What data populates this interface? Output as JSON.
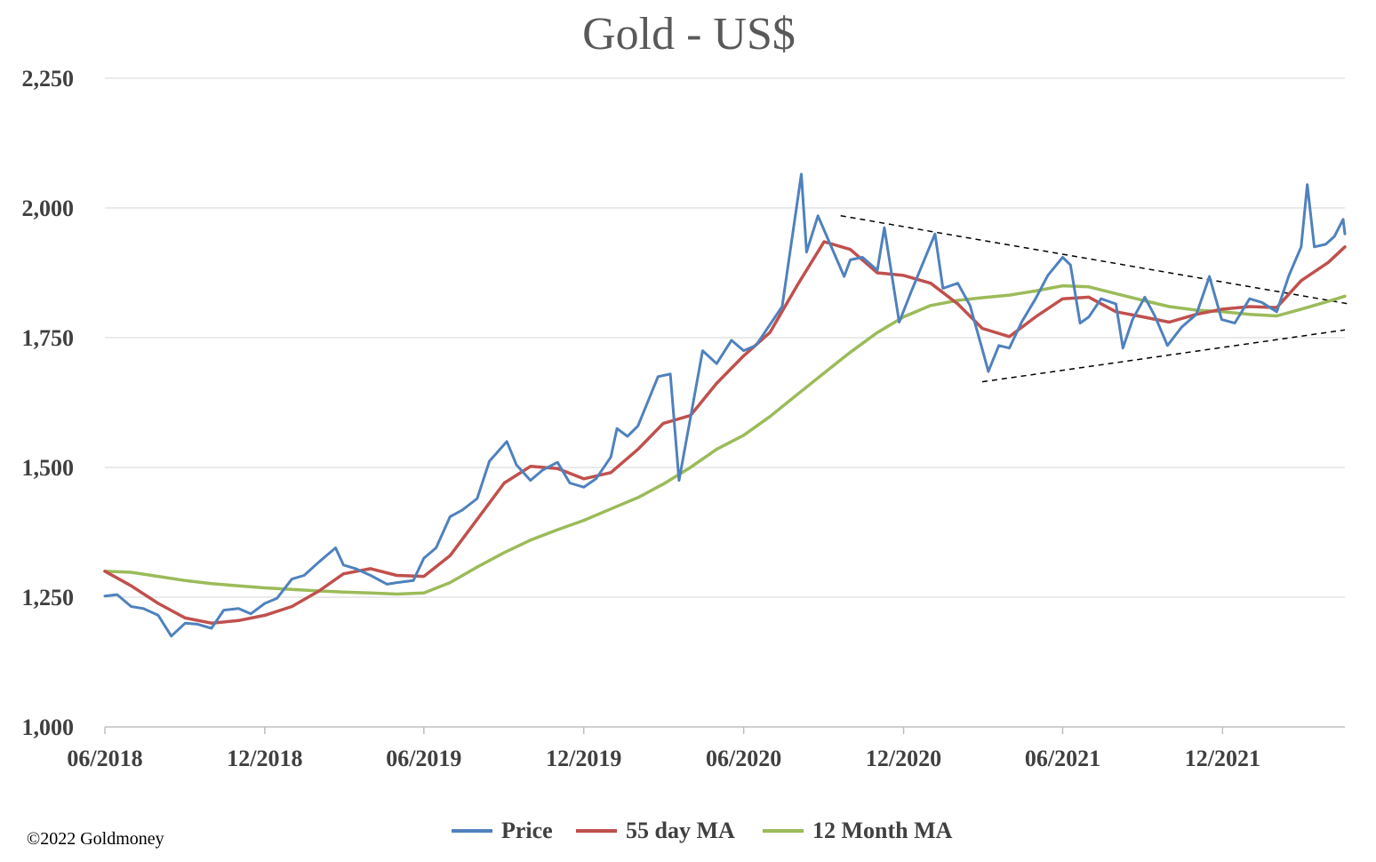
{
  "chart_data": {
    "type": "line",
    "title": "Gold - US$",
    "xlabel": "",
    "ylabel": "",
    "ylim": [
      1000,
      2250
    ],
    "yticks": [
      1000,
      1250,
      1500,
      1750,
      2000,
      2250
    ],
    "ytick_labels": [
      "1,000",
      "1,250",
      "1,500",
      "1,750",
      "2,000",
      "2,250"
    ],
    "xlim": [
      "2018-06-01",
      "2022-04-20"
    ],
    "xticks": [
      "2018-06-01",
      "2018-12-01",
      "2019-06-01",
      "2019-12-01",
      "2020-06-01",
      "2020-12-01",
      "2021-06-01",
      "2021-12-01"
    ],
    "xtick_labels": [
      "06/2018",
      "12/2018",
      "06/2019",
      "12/2019",
      "06/2020",
      "12/2020",
      "06/2021",
      "12/2021"
    ],
    "grid": true,
    "legend_position": "bottom",
    "copyright": "©2022 Goldmoney",
    "series": [
      {
        "name": "Price",
        "color": "#4f81bd",
        "points": [
          [
            "2018-06-01",
            1252
          ],
          [
            "2018-06-15",
            1255
          ],
          [
            "2018-07-01",
            1232
          ],
          [
            "2018-07-15",
            1228
          ],
          [
            "2018-08-01",
            1215
          ],
          [
            "2018-08-16",
            1175
          ],
          [
            "2018-09-01",
            1200
          ],
          [
            "2018-09-15",
            1198
          ],
          [
            "2018-10-01",
            1190
          ],
          [
            "2018-10-15",
            1225
          ],
          [
            "2018-11-01",
            1228
          ],
          [
            "2018-11-15",
            1218
          ],
          [
            "2018-12-01",
            1238
          ],
          [
            "2018-12-15",
            1248
          ],
          [
            "2019-01-01",
            1285
          ],
          [
            "2019-01-15",
            1292
          ],
          [
            "2019-02-01",
            1318
          ],
          [
            "2019-02-20",
            1345
          ],
          [
            "2019-03-01",
            1312
          ],
          [
            "2019-03-15",
            1305
          ],
          [
            "2019-04-01",
            1292
          ],
          [
            "2019-04-20",
            1275
          ],
          [
            "2019-05-01",
            1278
          ],
          [
            "2019-05-20",
            1282
          ],
          [
            "2019-06-01",
            1325
          ],
          [
            "2019-06-15",
            1345
          ],
          [
            "2019-07-01",
            1405
          ],
          [
            "2019-07-15",
            1418
          ],
          [
            "2019-08-01",
            1440
          ],
          [
            "2019-08-15",
            1512
          ],
          [
            "2019-09-04",
            1550
          ],
          [
            "2019-09-15",
            1505
          ],
          [
            "2019-10-01",
            1475
          ],
          [
            "2019-10-15",
            1495
          ],
          [
            "2019-11-01",
            1510
          ],
          [
            "2019-11-15",
            1470
          ],
          [
            "2019-12-01",
            1462
          ],
          [
            "2019-12-15",
            1478
          ],
          [
            "2020-01-01",
            1520
          ],
          [
            "2020-01-08",
            1575
          ],
          [
            "2020-01-20",
            1560
          ],
          [
            "2020-02-01",
            1580
          ],
          [
            "2020-02-24",
            1675
          ],
          [
            "2020-03-09",
            1680
          ],
          [
            "2020-03-19",
            1475
          ],
          [
            "2020-04-01",
            1595
          ],
          [
            "2020-04-15",
            1725
          ],
          [
            "2020-05-01",
            1700
          ],
          [
            "2020-05-18",
            1745
          ],
          [
            "2020-06-01",
            1725
          ],
          [
            "2020-06-15",
            1735
          ],
          [
            "2020-07-01",
            1775
          ],
          [
            "2020-07-15",
            1810
          ],
          [
            "2020-08-06",
            2065
          ],
          [
            "2020-08-12",
            1915
          ],
          [
            "2020-08-25",
            1985
          ],
          [
            "2020-09-08",
            1930
          ],
          [
            "2020-09-24",
            1868
          ],
          [
            "2020-10-01",
            1900
          ],
          [
            "2020-10-15",
            1905
          ],
          [
            "2020-11-01",
            1880
          ],
          [
            "2020-11-09",
            1962
          ],
          [
            "2020-11-26",
            1780
          ],
          [
            "2020-12-10",
            1840
          ],
          [
            "2021-01-06",
            1950
          ],
          [
            "2021-01-15",
            1845
          ],
          [
            "2021-02-01",
            1855
          ],
          [
            "2021-02-15",
            1812
          ],
          [
            "2021-03-01",
            1728
          ],
          [
            "2021-03-08",
            1685
          ],
          [
            "2021-03-20",
            1735
          ],
          [
            "2021-04-01",
            1730
          ],
          [
            "2021-04-15",
            1780
          ],
          [
            "2021-05-01",
            1825
          ],
          [
            "2021-05-15",
            1870
          ],
          [
            "2021-06-01",
            1905
          ],
          [
            "2021-06-10",
            1890
          ],
          [
            "2021-06-21",
            1778
          ],
          [
            "2021-07-01",
            1790
          ],
          [
            "2021-07-15",
            1825
          ],
          [
            "2021-08-01",
            1815
          ],
          [
            "2021-08-09",
            1730
          ],
          [
            "2021-08-20",
            1785
          ],
          [
            "2021-09-03",
            1828
          ],
          [
            "2021-09-15",
            1790
          ],
          [
            "2021-09-29",
            1735
          ],
          [
            "2021-10-15",
            1770
          ],
          [
            "2021-11-01",
            1795
          ],
          [
            "2021-11-16",
            1868
          ],
          [
            "2021-11-30",
            1785
          ],
          [
            "2021-12-15",
            1778
          ],
          [
            "2022-01-01",
            1825
          ],
          [
            "2022-01-15",
            1818
          ],
          [
            "2022-02-01",
            1800
          ],
          [
            "2022-02-15",
            1870
          ],
          [
            "2022-03-01",
            1925
          ],
          [
            "2022-03-08",
            2045
          ],
          [
            "2022-03-16",
            1925
          ],
          [
            "2022-03-29",
            1930
          ],
          [
            "2022-04-08",
            1945
          ],
          [
            "2022-04-18",
            1978
          ],
          [
            "2022-04-20",
            1950
          ]
        ]
      },
      {
        "name": "55 day MA",
        "color": "#c0504d",
        "points": [
          [
            "2018-06-01",
            1300
          ],
          [
            "2018-07-01",
            1272
          ],
          [
            "2018-08-01",
            1238
          ],
          [
            "2018-09-01",
            1210
          ],
          [
            "2018-10-01",
            1200
          ],
          [
            "2018-11-01",
            1205
          ],
          [
            "2018-12-01",
            1215
          ],
          [
            "2019-01-01",
            1232
          ],
          [
            "2019-02-01",
            1262
          ],
          [
            "2019-03-01",
            1295
          ],
          [
            "2019-04-01",
            1305
          ],
          [
            "2019-05-01",
            1292
          ],
          [
            "2019-06-01",
            1290
          ],
          [
            "2019-07-01",
            1330
          ],
          [
            "2019-08-01",
            1400
          ],
          [
            "2019-09-01",
            1470
          ],
          [
            "2019-10-01",
            1502
          ],
          [
            "2019-11-01",
            1498
          ],
          [
            "2019-12-01",
            1478
          ],
          [
            "2020-01-01",
            1490
          ],
          [
            "2020-02-01",
            1535
          ],
          [
            "2020-03-01",
            1585
          ],
          [
            "2020-04-01",
            1600
          ],
          [
            "2020-05-01",
            1662
          ],
          [
            "2020-06-01",
            1715
          ],
          [
            "2020-07-01",
            1760
          ],
          [
            "2020-08-01",
            1850
          ],
          [
            "2020-09-01",
            1935
          ],
          [
            "2020-10-01",
            1920
          ],
          [
            "2020-11-01",
            1875
          ],
          [
            "2020-12-01",
            1870
          ],
          [
            "2021-01-01",
            1855
          ],
          [
            "2021-02-01",
            1815
          ],
          [
            "2021-03-01",
            1768
          ],
          [
            "2021-04-01",
            1752
          ],
          [
            "2021-05-01",
            1790
          ],
          [
            "2021-06-01",
            1825
          ],
          [
            "2021-07-01",
            1828
          ],
          [
            "2021-08-01",
            1800
          ],
          [
            "2021-09-01",
            1790
          ],
          [
            "2021-10-01",
            1780
          ],
          [
            "2021-11-01",
            1795
          ],
          [
            "2021-12-01",
            1805
          ],
          [
            "2022-01-01",
            1810
          ],
          [
            "2022-02-01",
            1808
          ],
          [
            "2022-03-01",
            1860
          ],
          [
            "2022-04-01",
            1895
          ],
          [
            "2022-04-20",
            1925
          ]
        ]
      },
      {
        "name": "12 Month MA",
        "color": "#9bbb59",
        "points": [
          [
            "2018-06-01",
            1300
          ],
          [
            "2018-07-01",
            1298
          ],
          [
            "2018-08-01",
            1290
          ],
          [
            "2018-09-01",
            1282
          ],
          [
            "2018-10-01",
            1276
          ],
          [
            "2018-11-01",
            1272
          ],
          [
            "2018-12-01",
            1268
          ],
          [
            "2019-01-01",
            1265
          ],
          [
            "2019-02-01",
            1262
          ],
          [
            "2019-03-01",
            1260
          ],
          [
            "2019-04-01",
            1258
          ],
          [
            "2019-05-01",
            1256
          ],
          [
            "2019-06-01",
            1258
          ],
          [
            "2019-07-01",
            1278
          ],
          [
            "2019-08-01",
            1308
          ],
          [
            "2019-09-01",
            1336
          ],
          [
            "2019-10-01",
            1360
          ],
          [
            "2019-11-01",
            1380
          ],
          [
            "2019-12-01",
            1398
          ],
          [
            "2020-01-01",
            1420
          ],
          [
            "2020-02-01",
            1442
          ],
          [
            "2020-03-01",
            1468
          ],
          [
            "2020-04-01",
            1500
          ],
          [
            "2020-05-01",
            1535
          ],
          [
            "2020-06-01",
            1562
          ],
          [
            "2020-07-01",
            1598
          ],
          [
            "2020-08-01",
            1640
          ],
          [
            "2020-09-01",
            1682
          ],
          [
            "2020-10-01",
            1722
          ],
          [
            "2020-11-01",
            1760
          ],
          [
            "2020-12-01",
            1790
          ],
          [
            "2021-01-01",
            1812
          ],
          [
            "2021-02-01",
            1822
          ],
          [
            "2021-03-01",
            1827
          ],
          [
            "2021-04-01",
            1832
          ],
          [
            "2021-05-01",
            1840
          ],
          [
            "2021-06-01",
            1850
          ],
          [
            "2021-07-01",
            1848
          ],
          [
            "2021-08-01",
            1835
          ],
          [
            "2021-09-01",
            1822
          ],
          [
            "2021-10-01",
            1810
          ],
          [
            "2021-11-01",
            1803
          ],
          [
            "2021-12-01",
            1800
          ],
          [
            "2022-01-01",
            1795
          ],
          [
            "2022-02-01",
            1792
          ],
          [
            "2022-03-01",
            1805
          ],
          [
            "2022-04-01",
            1820
          ],
          [
            "2022-04-20",
            1830
          ]
        ]
      }
    ],
    "trendlines": [
      {
        "style": "dashed",
        "color": "#000000",
        "points": [
          [
            "2020-09-20",
            1985
          ],
          [
            "2022-04-25",
            1815
          ]
        ]
      },
      {
        "style": "dashed",
        "color": "#000000",
        "points": [
          [
            "2021-03-01",
            1665
          ],
          [
            "2022-04-20",
            1765
          ]
        ]
      }
    ]
  }
}
